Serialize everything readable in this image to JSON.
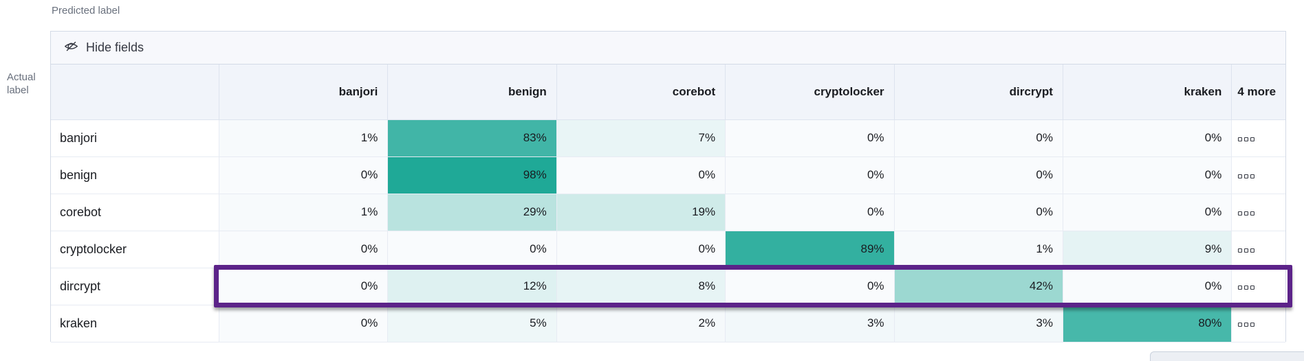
{
  "page": {
    "predicted_axis_label": "Predicted label",
    "actual_axis_label": "Actual label"
  },
  "toolbar": {
    "hide_fields_label": "Hide fields",
    "icon": "eye-closed-icon"
  },
  "chart_data": {
    "type": "heatmap",
    "x_axis_label": "Predicted label",
    "y_axis_label": "Actual label",
    "columns": [
      "banjori",
      "benign",
      "corebot",
      "cryptolocker",
      "dircrypt",
      "kraken"
    ],
    "more_columns_label": "4 more",
    "rows": [
      {
        "label": "banjori",
        "values": [
          1,
          83,
          7,
          0,
          0,
          0
        ]
      },
      {
        "label": "benign",
        "values": [
          0,
          98,
          0,
          0,
          0,
          0
        ]
      },
      {
        "label": "corebot",
        "values": [
          1,
          29,
          19,
          0,
          0,
          0
        ]
      },
      {
        "label": "cryptolocker",
        "values": [
          0,
          0,
          0,
          89,
          1,
          9
        ]
      },
      {
        "label": "dircrypt",
        "values": [
          0,
          12,
          8,
          0,
          42,
          0
        ]
      },
      {
        "label": "kraken",
        "values": [
          0,
          5,
          2,
          3,
          3,
          80
        ]
      }
    ],
    "value_suffix": "%",
    "value_range": [
      0,
      100
    ],
    "color_scale": {
      "zero_color": "#F9FBFD",
      "full_color": "#1BA795"
    },
    "row_actions_icon": "boxes-horizontal-icon",
    "highlight": {
      "row_label": "dircrypt",
      "color": "#5C2389"
    }
  }
}
